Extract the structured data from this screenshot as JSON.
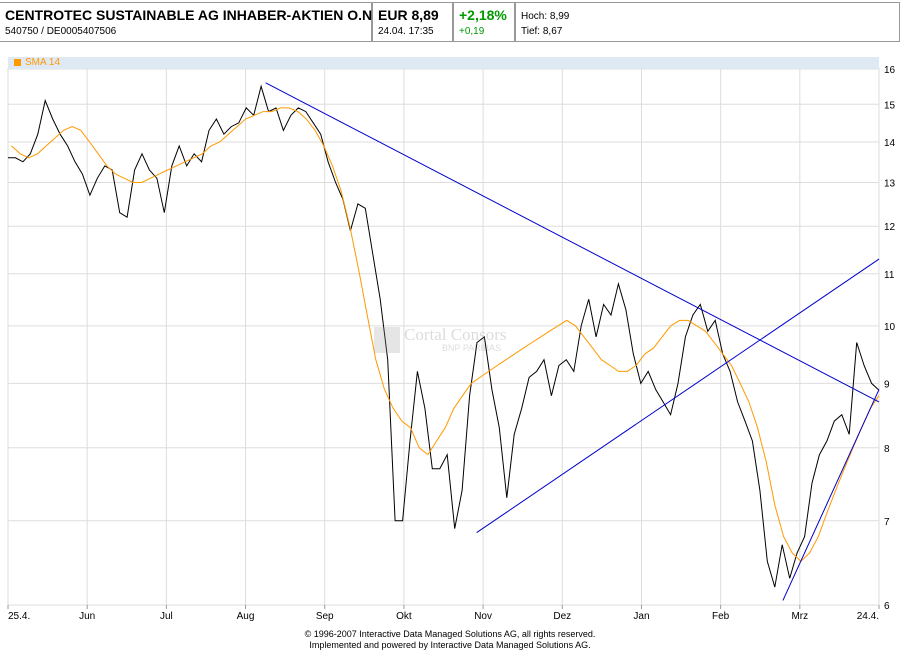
{
  "header": {
    "name": "CENTROTEC SUSTAINABLE AG INHABER-AKTIEN O.N.",
    "ids": "540750  /  DE0005407506",
    "price": "EUR 8,89",
    "datetime": "24.04.  17:35",
    "change_pct": "+2,18%",
    "change_abs": "+0,19",
    "high": "Hoch: 8,99",
    "low": "Tief: 8,67",
    "positive_color": "#009900"
  },
  "legend": {
    "label": "SMA 14",
    "color": "#ff9900"
  },
  "watermark": {
    "line1": "Cortal Consors",
    "line2": "BNP PARIBAS"
  },
  "footer": {
    "line1": "© 1996-2007 Interactive Data Managed Solutions AG, all rights reserved.",
    "line2": "Implemented and powered by Interactive Data Managed Solutions AG."
  },
  "chart_data": {
    "type": "line",
    "y_scale": "log",
    "ylim": [
      6,
      16
    ],
    "yticks": [
      6,
      7,
      8,
      9,
      10,
      11,
      12,
      13,
      14,
      15,
      16
    ],
    "xlabels": [
      "25.4.",
      "Jun",
      "Jul",
      "Aug",
      "Sep",
      "Okt",
      "Nov",
      "Dez",
      "Jan",
      "Feb",
      "Mrz",
      "24.4."
    ],
    "grid": true,
    "legend_position": "top-left",
    "series": [
      {
        "name": "",
        "color": "#000000",
        "values": [
          13.6,
          13.6,
          13.5,
          13.7,
          14.2,
          15.1,
          14.6,
          14.2,
          13.9,
          13.5,
          13.2,
          12.7,
          13.1,
          13.4,
          13.3,
          12.3,
          12.2,
          13.3,
          13.7,
          13.3,
          13.1,
          12.3,
          13.4,
          13.9,
          13.4,
          13.7,
          13.5,
          14.3,
          14.6,
          14.2,
          14.4,
          14.5,
          14.9,
          14.7,
          15.5,
          14.8,
          14.9,
          14.3,
          14.7,
          14.9,
          14.8,
          14.5,
          14.2,
          13.5,
          13.0,
          12.6,
          11.9,
          12.5,
          12.4,
          11.4,
          10.5,
          9.4,
          7.0,
          7.0,
          8.1,
          9.2,
          8.6,
          7.7,
          7.7,
          7.9,
          6.9,
          7.4,
          8.8,
          9.7,
          9.8,
          8.9,
          8.3,
          7.3,
          8.2,
          8.6,
          9.1,
          9.2,
          9.4,
          8.8,
          9.3,
          9.4,
          9.2,
          10.0,
          10.5,
          9.8,
          10.4,
          10.2,
          10.8,
          10.3,
          9.5,
          9.0,
          9.2,
          8.9,
          8.7,
          8.5,
          9.0,
          9.8,
          10.2,
          10.4,
          9.9,
          10.1,
          9.5,
          9.2,
          8.7,
          8.4,
          8.1,
          7.4,
          6.5,
          6.2,
          6.7,
          6.3,
          6.6,
          6.8,
          7.5,
          7.9,
          8.1,
          8.4,
          8.5,
          8.2,
          9.7,
          9.3,
          9.0,
          8.89
        ]
      },
      {
        "name": "SMA 14",
        "color": "#ff9900",
        "values": [
          13.9,
          13.7,
          13.6,
          13.7,
          13.9,
          14.1,
          14.3,
          14.4,
          14.3,
          14.0,
          13.7,
          13.4,
          13.2,
          13.1,
          13.0,
          13.0,
          13.1,
          13.2,
          13.3,
          13.4,
          13.5,
          13.6,
          13.7,
          13.9,
          14.0,
          14.2,
          14.4,
          14.6,
          14.7,
          14.8,
          14.8,
          14.9,
          14.9,
          14.8,
          14.6,
          14.3,
          13.9,
          13.4,
          12.8,
          12.0,
          11.1,
          10.2,
          9.4,
          8.9,
          8.6,
          8.4,
          8.3,
          8.0,
          7.9,
          8.1,
          8.3,
          8.6,
          8.8,
          9.0,
          9.1,
          9.2,
          9.3,
          9.4,
          9.5,
          9.6,
          9.7,
          9.8,
          9.9,
          10.0,
          10.1,
          10.0,
          9.8,
          9.6,
          9.4,
          9.3,
          9.2,
          9.2,
          9.3,
          9.5,
          9.6,
          9.8,
          10.0,
          10.1,
          10.1,
          10.0,
          9.9,
          9.7,
          9.5,
          9.3,
          9.0,
          8.7,
          8.3,
          7.8,
          7.2,
          6.8,
          6.6,
          6.5,
          6.6,
          6.8,
          7.1,
          7.4,
          7.7,
          8.0,
          8.3,
          8.6,
          8.8
        ]
      }
    ],
    "trendlines": [
      {
        "color": "#0000cc",
        "from": [
          0.2958,
          15.6
        ],
        "to": [
          1.0,
          8.7
        ]
      },
      {
        "color": "#0000cc",
        "from": [
          0.5381,
          6.85
        ],
        "to": [
          1.0,
          11.3
        ]
      },
      {
        "color": "#0000cc",
        "from": [
          0.8897,
          6.05
        ],
        "to": [
          1.0,
          8.9
        ]
      }
    ]
  }
}
